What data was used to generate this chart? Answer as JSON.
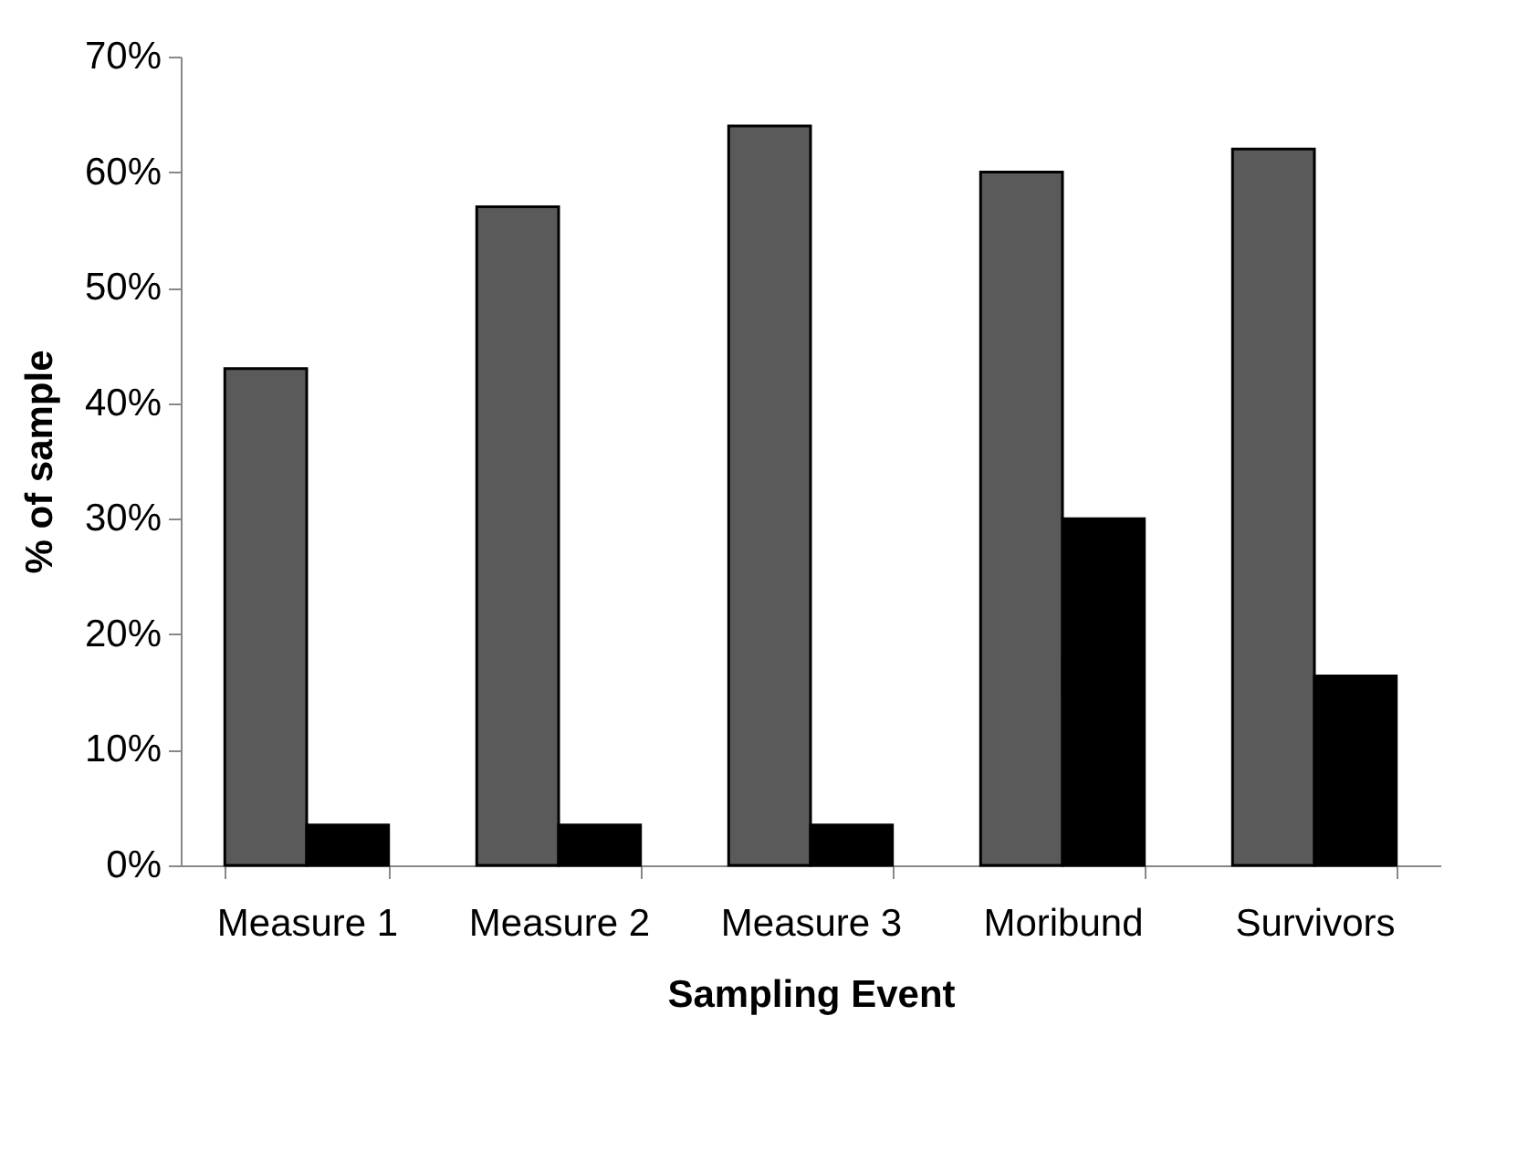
{
  "chart_data": {
    "type": "bar",
    "xlabel": "Sampling Event",
    "ylabel": "% of sample",
    "categories": [
      "Measure 1",
      "Measure 2",
      "Measure 3",
      "Moribund",
      "Survivors"
    ],
    "series": [
      {
        "color": "#5a5a5a",
        "values": [
          43,
          57,
          64,
          60,
          62
        ]
      },
      {
        "color": "#000000",
        "values": [
          3.5,
          3.5,
          3.5,
          30,
          16.4
        ]
      }
    ],
    "ylim": [
      0,
      70
    ],
    "yticks": [
      {
        "value": 0,
        "label": "0%"
      },
      {
        "value": 10,
        "label": "10%"
      },
      {
        "value": 20,
        "label": "20%"
      },
      {
        "value": 30,
        "label": "30%"
      },
      {
        "value": 40,
        "label": "40%"
      },
      {
        "value": 50,
        "label": "50%"
      },
      {
        "value": 60,
        "label": "60%"
      },
      {
        "value": 70,
        "label": "70%"
      }
    ],
    "grid": false,
    "legend": false
  }
}
